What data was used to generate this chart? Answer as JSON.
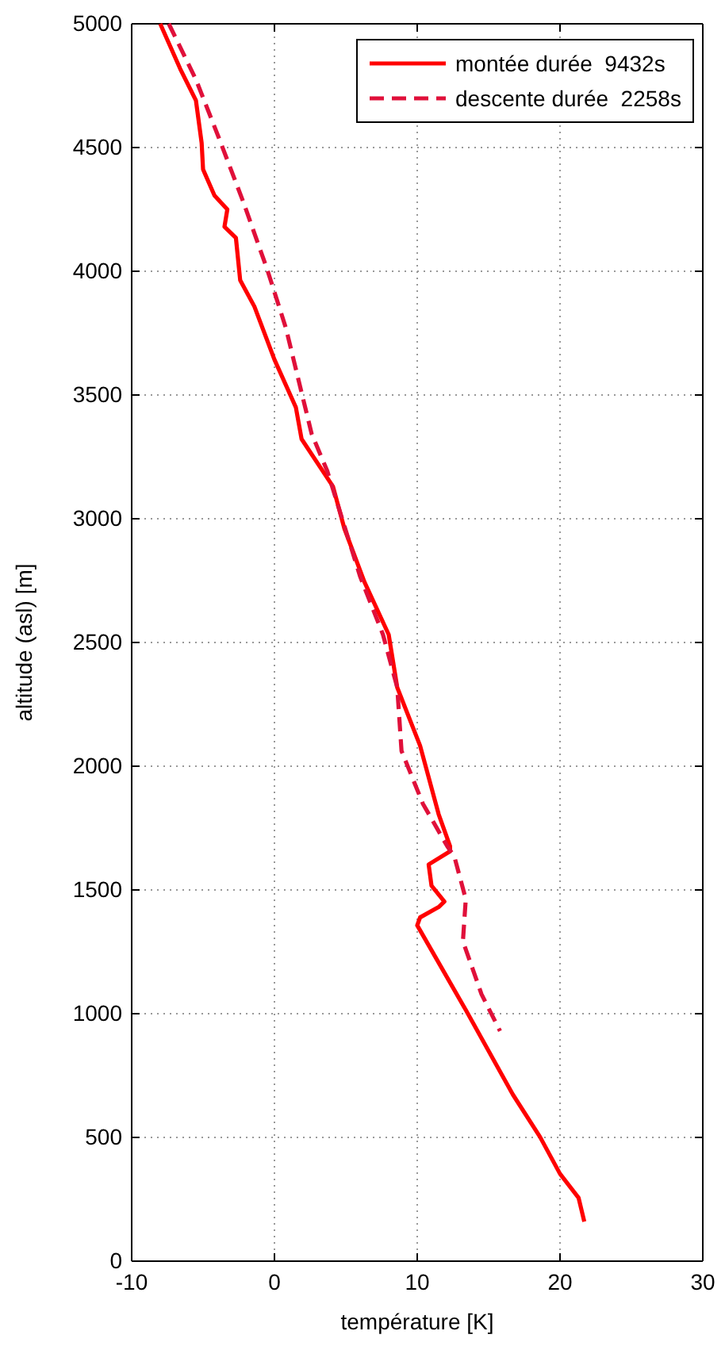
{
  "chart_data": {
    "type": "line",
    "xlabel": "température [K]",
    "ylabel": "altitude (asl) [m]",
    "xlim": [
      -10,
      30
    ],
    "xticks": [
      -10,
      0,
      10,
      20,
      30
    ],
    "ylim": [
      0,
      5000
    ],
    "yticks": [
      0,
      500,
      1000,
      1500,
      2000,
      2500,
      3000,
      3500,
      4000,
      4500,
      5000
    ],
    "grid": true,
    "legend": "top right",
    "series": [
      {
        "name": "montée durée  9432s",
        "color": "#ff0000",
        "line_style": "solid",
        "x": [
          -8.0,
          -6.6,
          -5.5,
          -5.1,
          -5.0,
          -4.2,
          -3.3,
          -3.5,
          -2.7,
          -2.4,
          -1.4,
          0.0,
          1.5,
          1.9,
          4.1,
          4.9,
          6.3,
          8.0,
          8.6,
          10.2,
          11.5,
          12.3,
          12.3,
          10.8,
          11.0,
          11.9,
          11.5,
          10.2,
          10.0,
          13.4,
          16.7,
          18.6,
          20.0,
          21.3,
          21.7
        ],
        "values": [
          5000,
          4818,
          4690,
          4519,
          4412,
          4306,
          4250,
          4180,
          4135,
          3964,
          3857,
          3643,
          3450,
          3322,
          3130,
          2960,
          2745,
          2532,
          2318,
          2083,
          1806,
          1677,
          1656,
          1603,
          1517,
          1453,
          1431,
          1389,
          1357,
          1015,
          673,
          502,
          353,
          256,
          160
        ]
      },
      {
        "name": "descente durée  2258s",
        "color": "#e0103a",
        "line_style": "dashed",
        "x": [
          -7.4,
          -5.5,
          -3.9,
          -2.2,
          -0.5,
          0.8,
          2.6,
          3.7,
          6.0,
          7.6,
          8.6,
          8.9,
          10.4,
          12.1,
          12.6,
          13.4,
          13.2,
          14.5,
          15.8
        ],
        "values": [
          5000,
          4775,
          4540,
          4283,
          4006,
          3771,
          3344,
          3193,
          2767,
          2532,
          2318,
          2062,
          1848,
          1677,
          1635,
          1463,
          1293,
          1079,
          930
        ]
      }
    ]
  }
}
